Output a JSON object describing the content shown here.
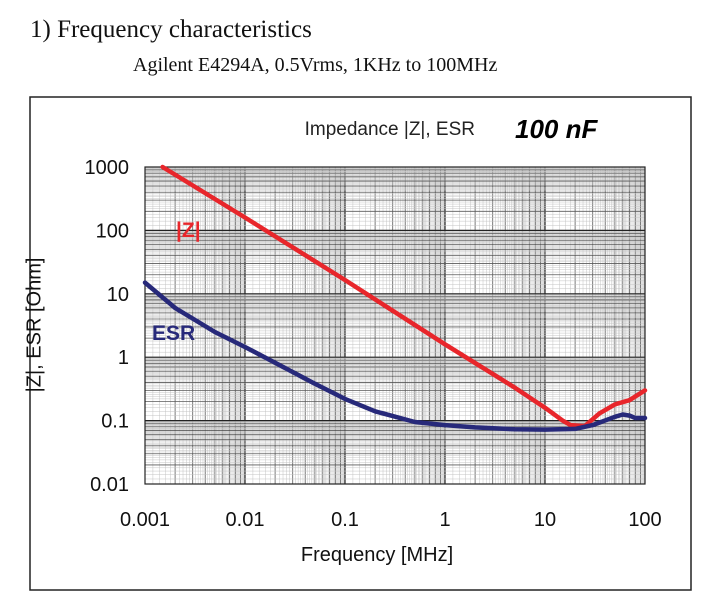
{
  "header": {
    "title": "1) Frequency characteristics",
    "subtitle": "Agilent E4294A, 0.5Vrms, 1KHz to 100MHz"
  },
  "chart_data": {
    "type": "line",
    "title": "Impedance |Z|,  ESR",
    "badge": "100 nF",
    "xlabel": "Frequency [MHz]",
    "ylabel": "|Z|, ESR [Ohm]",
    "x_scale": "log",
    "y_scale": "log",
    "xlim": [
      0.001,
      100
    ],
    "ylim": [
      0.01,
      1000
    ],
    "x_ticks": [
      "0.001",
      "0.01",
      "0.1",
      "1",
      "10",
      "100"
    ],
    "y_ticks": [
      "1000",
      "100",
      "10",
      "1",
      "0.1",
      "0.01"
    ],
    "grid": true,
    "series": [
      {
        "name": "|Z|",
        "color": "#e8262b",
        "points": [
          [
            0.0015,
            1000
          ],
          [
            0.01,
            160
          ],
          [
            0.1,
            16.5
          ],
          [
            1,
            1.6
          ],
          [
            5,
            0.33
          ],
          [
            10,
            0.16
          ],
          [
            15,
            0.1
          ],
          [
            18,
            0.085
          ],
          [
            25,
            0.082
          ],
          [
            35,
            0.13
          ],
          [
            50,
            0.18
          ],
          [
            70,
            0.21
          ],
          [
            100,
            0.3
          ]
        ]
      },
      {
        "name": "ESR",
        "color": "#27297a",
        "points": [
          [
            0.001,
            15
          ],
          [
            0.002,
            6
          ],
          [
            0.005,
            2.5
          ],
          [
            0.01,
            1.45
          ],
          [
            0.02,
            0.82
          ],
          [
            0.05,
            0.38
          ],
          [
            0.1,
            0.22
          ],
          [
            0.2,
            0.14
          ],
          [
            0.5,
            0.095
          ],
          [
            1,
            0.085
          ],
          [
            2,
            0.078
          ],
          [
            5,
            0.073
          ],
          [
            10,
            0.072
          ],
          [
            20,
            0.074
          ],
          [
            30,
            0.085
          ],
          [
            50,
            0.115
          ],
          [
            60,
            0.125
          ],
          [
            70,
            0.12
          ],
          [
            80,
            0.11
          ],
          [
            100,
            0.11
          ]
        ]
      }
    ]
  }
}
